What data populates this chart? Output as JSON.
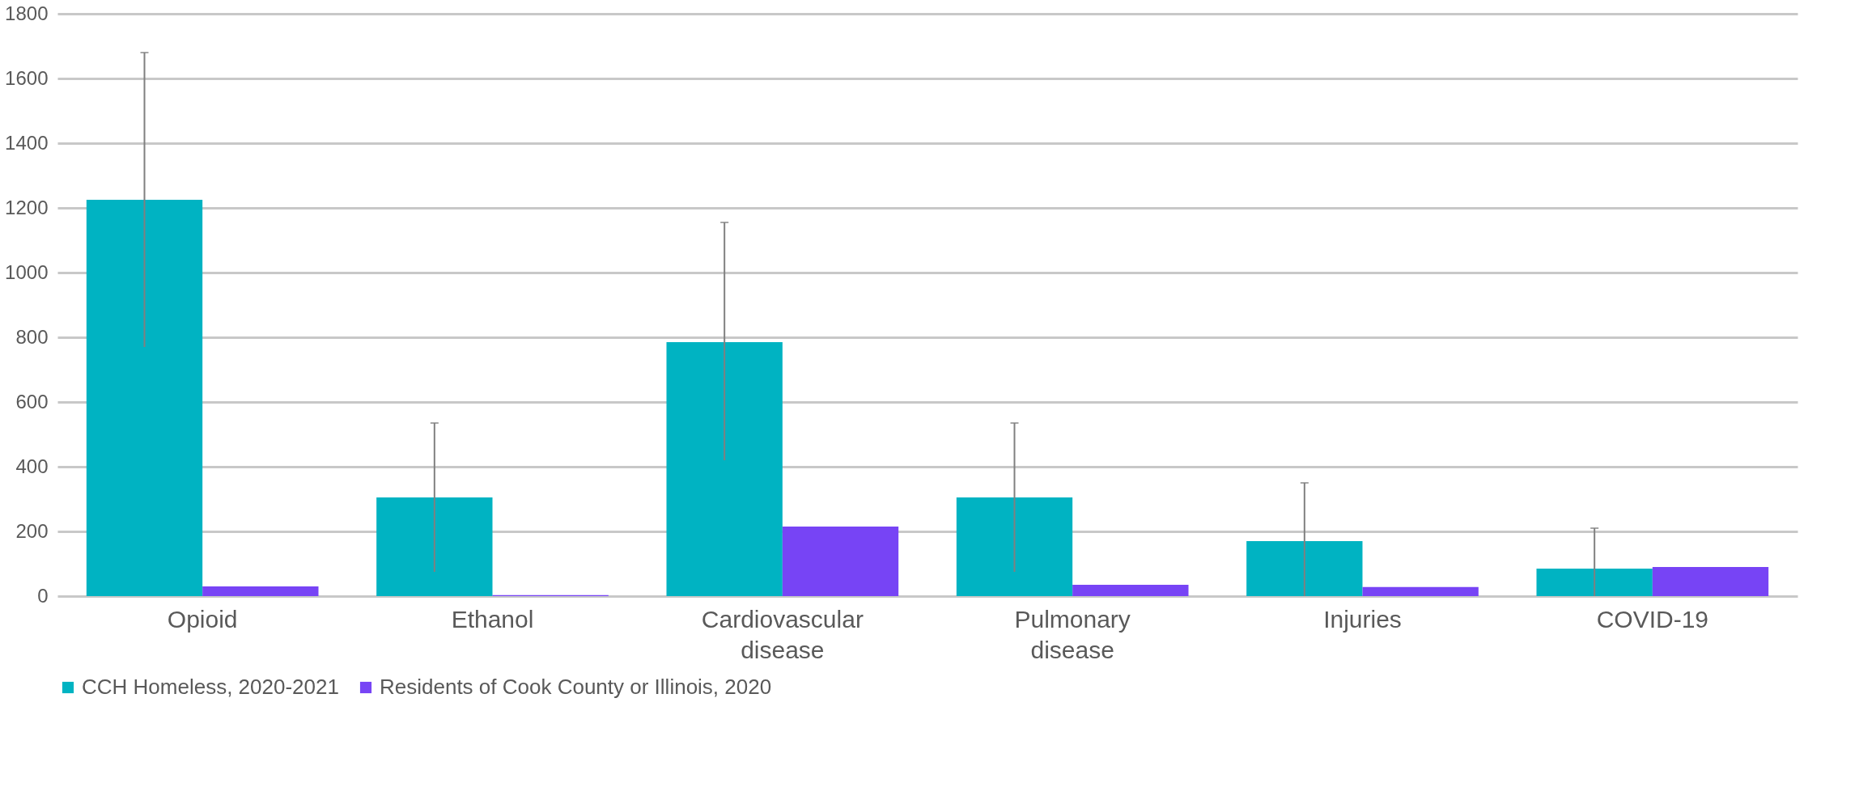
{
  "chart_data": {
    "type": "bar",
    "categories": [
      "Opioid",
      "Ethanol",
      "Cardiovascular disease",
      "Pulmonary disease",
      "Injuries",
      "COVID-19"
    ],
    "series": [
      {
        "name": "CCH Homeless, 2020-2021",
        "color": "#00b3c2",
        "values": [
          1225,
          305,
          785,
          305,
          170,
          85
        ],
        "errors": [
          [
            770,
            1680
          ],
          [
            75,
            535
          ],
          [
            420,
            1155
          ],
          [
            75,
            535
          ],
          [
            0,
            350
          ],
          [
            0,
            210
          ]
        ]
      },
      {
        "name": "Residents of Cook County or Illinois, 2020",
        "color": "#7744f5",
        "values": [
          30,
          3,
          215,
          35,
          28,
          90
        ]
      }
    ],
    "ylim": [
      0,
      1800
    ],
    "yticks": [
      0,
      200,
      400,
      600,
      800,
      1000,
      1200,
      1400,
      1600,
      1800
    ],
    "grid": "y",
    "legend": "bottom"
  }
}
